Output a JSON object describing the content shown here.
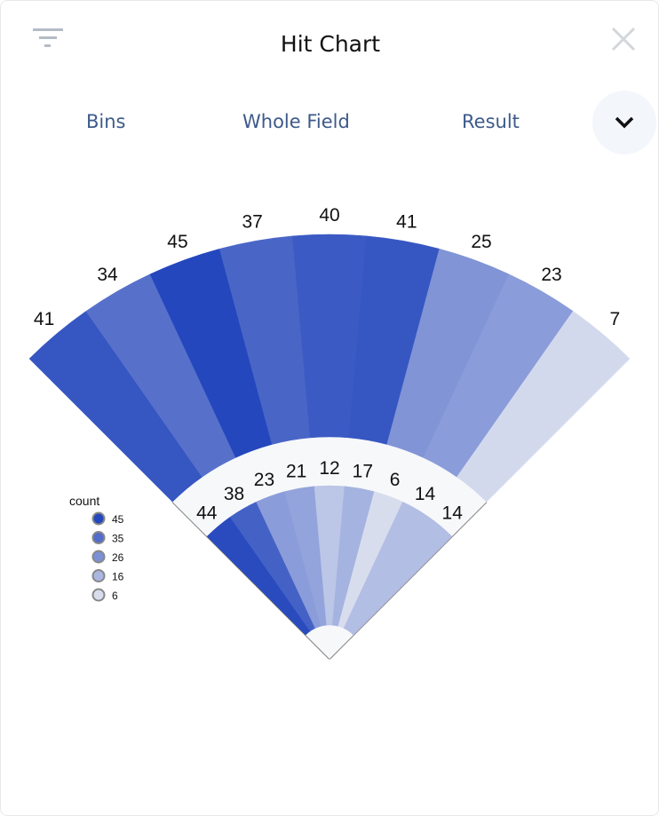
{
  "header": {
    "title": "Hit Chart",
    "filter_icon": "filter-icon",
    "close_icon": "close-icon"
  },
  "tabs": [
    {
      "label": "Bins"
    },
    {
      "label": "Whole Field"
    },
    {
      "label": "Result"
    }
  ],
  "expand_icon": "chevron-down-icon",
  "chart_data": {
    "type": "polar-wedge",
    "outer_values": [
      41,
      34,
      45,
      37,
      40,
      41,
      25,
      23,
      7
    ],
    "inner_values": [
      44,
      38,
      23,
      21,
      12,
      17,
      6,
      14,
      14
    ],
    "legend": {
      "title": "count",
      "entries": [
        45,
        35,
        26,
        16,
        6
      ],
      "placement": "left"
    },
    "color_scale": {
      "min": 6,
      "max": 45,
      "min_color": "#d8ddee",
      "max_color": "#2447bd"
    },
    "band_color": "#f6f8fa",
    "foul_line_color": "#808080"
  }
}
